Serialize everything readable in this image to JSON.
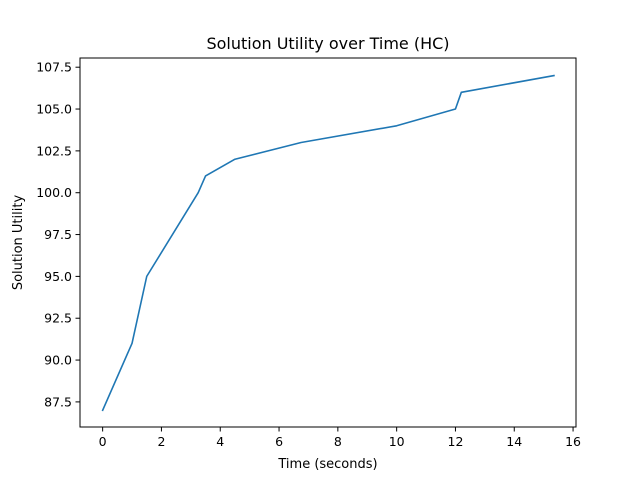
{
  "chart_data": {
    "type": "line",
    "title": "Solution Utility over Time (HC)",
    "xlabel": "Time (seconds)",
    "ylabel": "Solution Utility",
    "xlim": [
      -0.77,
      16.1
    ],
    "ylim": [
      86.0,
      108.05
    ],
    "x_ticks": [
      0,
      2,
      4,
      6,
      8,
      10,
      12,
      14,
      16
    ],
    "x_tick_labels": [
      "0",
      "2",
      "4",
      "6",
      "8",
      "10",
      "12",
      "14",
      "16"
    ],
    "y_ticks": [
      87.5,
      90.0,
      92.5,
      95.0,
      97.5,
      100.0,
      102.5,
      105.0,
      107.5
    ],
    "y_tick_labels": [
      "87.5",
      "90.0",
      "92.5",
      "95.0",
      "97.5",
      "100.0",
      "102.5",
      "105.0",
      "107.5"
    ],
    "grid": false,
    "series": [
      {
        "color": "#1f77b4",
        "x": [
          0.0,
          1.0,
          1.5,
          3.25,
          3.5,
          4.5,
          6.75,
          10.0,
          12.0,
          12.2,
          15.35
        ],
        "y": [
          87.0,
          91.0,
          95.0,
          100.0,
          101.0,
          102.0,
          103.0,
          104.0,
          105.0,
          106.0,
          107.0
        ]
      }
    ]
  }
}
